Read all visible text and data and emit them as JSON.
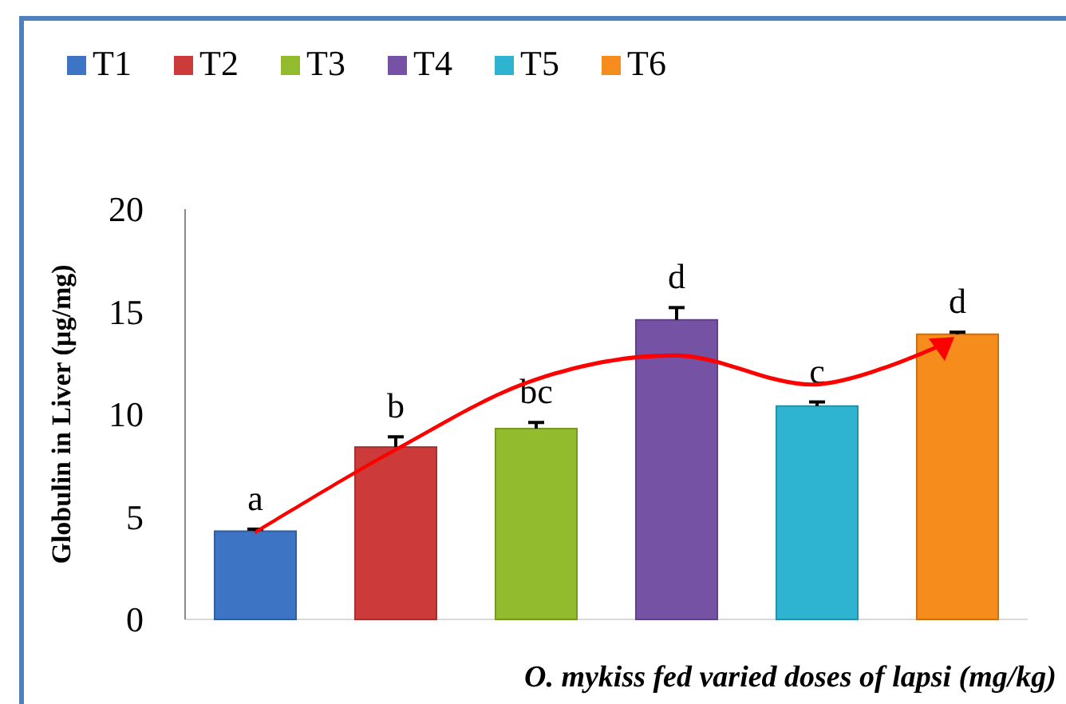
{
  "chart_data": {
    "type": "bar",
    "ylabel": "Globulin in Liver (µg/mg)",
    "xlabel": "O. mykiss fed varied doses of lapsi (mg/kg)",
    "categories": [
      null
    ],
    "series": [
      {
        "name": "T1",
        "color": "#3d74c4",
        "values": [
          4.3
        ],
        "errors": [
          0.1
        ]
      },
      {
        "name": "T2",
        "color": "#cc3a3a",
        "values": [
          8.4
        ],
        "errors": [
          0.5
        ]
      },
      {
        "name": "T3",
        "color": "#92bb2e",
        "values": [
          9.3
        ],
        "errors": [
          0.3
        ]
      },
      {
        "name": "T4",
        "color": "#7552a3",
        "values": [
          14.6
        ],
        "errors": [
          0.6
        ]
      },
      {
        "name": "T5",
        "color": "#2eb3d0",
        "values": [
          10.4
        ],
        "errors": [
          0.2
        ]
      },
      {
        "name": "T6",
        "color": "#f58c1c",
        "values": [
          13.9
        ],
        "errors": [
          0.1
        ]
      }
    ],
    "annotations": [
      "a",
      "b",
      "bc",
      "d",
      "c",
      "d"
    ],
    "ylim": [
      0,
      20
    ],
    "yticks": [
      0,
      5,
      10,
      15,
      20
    ],
    "grid": false,
    "legend": "top left"
  }
}
